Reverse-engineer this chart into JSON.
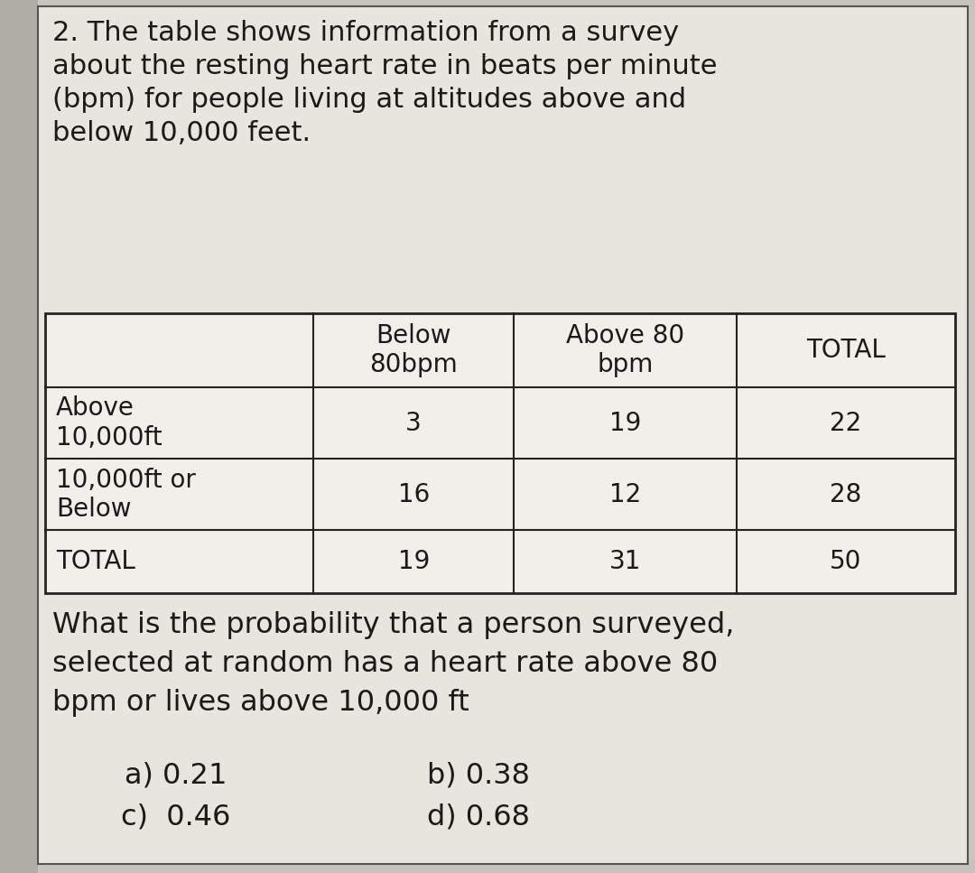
{
  "title": "2. The table shows information from a survey\nabout the resting heart rate in beats per minute\n(bpm) for people living at altitudes above and\nbelow 10,000 feet.",
  "question": "What is the probability that a person surveyed,\nselected at random has a heart rate above 80\nbpm or lives above 10,000 ft",
  "answer_row1_a": "a) 0.21",
  "answer_row1_b": "b) 0.38",
  "answer_row2_c": "c)  0.46",
  "answer_row2_d": "d) 0.68",
  "col_headers": [
    "",
    "Below\n80bpm",
    "Above 80\nbpm",
    "TOTAL"
  ],
  "row_labels": [
    "Above\n10,000ft",
    "10,000ft or\nBelow",
    "TOTAL"
  ],
  "table_data": [
    [
      "3",
      "19",
      "22"
    ],
    [
      "16",
      "12",
      "28"
    ],
    [
      "19",
      "31",
      "50"
    ]
  ],
  "bg_color": "#c8c4bc",
  "paper_color": "#e8e4de",
  "white_color": "#f0ede8",
  "text_color": "#1a1a1a",
  "font_size_title": 22,
  "font_size_table": 20,
  "font_size_question": 23,
  "font_size_answers": 23,
  "left_strip_color": "#b0ada6"
}
